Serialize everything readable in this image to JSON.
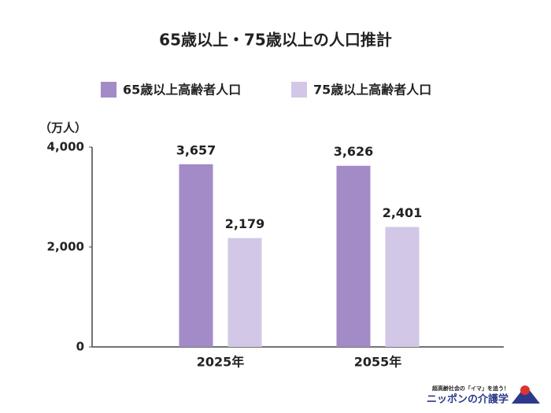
{
  "chart_data": {
    "type": "bar",
    "title": "65歳以上・75歳以上の人口推計",
    "y_axis_label": "（万人）",
    "categories": [
      "2025年",
      "2055年"
    ],
    "series": [
      {
        "name": "65歳以上高齢者人口",
        "color": "#a28bc6",
        "values": [
          3657,
          3626
        ],
        "value_labels": [
          "3,657",
          "3,626"
        ]
      },
      {
        "name": "75歳以上高齢者人口",
        "color": "#d2c7e6",
        "values": [
          2179,
          2401
        ],
        "value_labels": [
          "2,179",
          "2,401"
        ]
      }
    ],
    "ylim": [
      0,
      4000
    ],
    "yticks": [
      0,
      {
        "value": 2000,
        "label": "2,000"
      },
      {
        "value": 4000,
        "label": "4,000"
      }
    ],
    "legend": "top",
    "grid": false
  },
  "branding": {
    "tagline": "超高齢社会の「イマ」を追う！",
    "name": "ニッポンの介護学"
  }
}
